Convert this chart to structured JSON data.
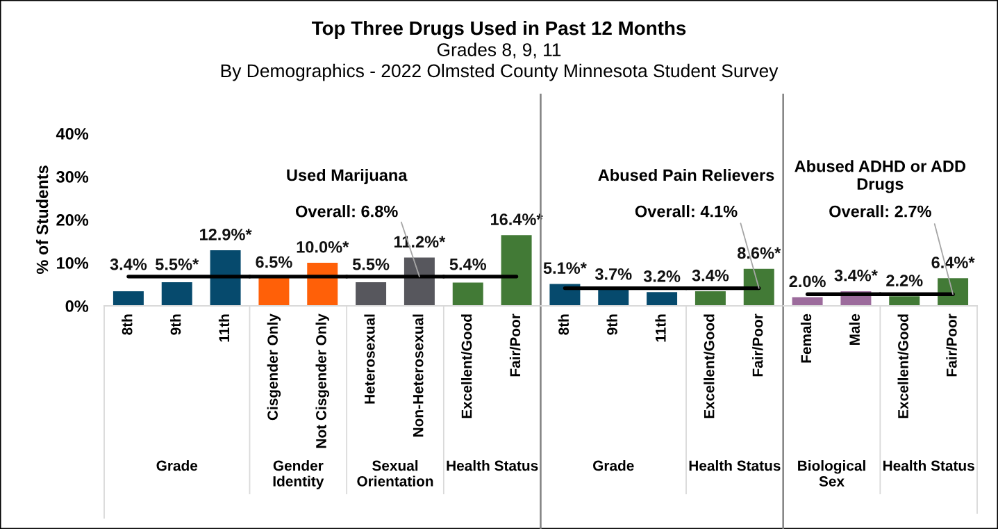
{
  "chart_data": [
    {
      "type": "bar",
      "ylabel": "% of Students",
      "xlabel": "Grade",
      "categories": [
        "8th",
        "9th",
        "11th"
      ],
      "values": [
        3.4,
        5.5,
        12.9
      ],
      "value_labels": [
        "3.4%",
        "5.5%*",
        "12.9%*"
      ],
      "color": "#064a6d",
      "ylim": [
        0,
        40
      ],
      "yticks": [
        {
          "value": 0,
          "label": "0%"
        },
        {
          "value": 10,
          "label": "10%"
        },
        {
          "value": 20,
          "label": "20%"
        },
        {
          "value": 30,
          "label": "30%"
        },
        {
          "value": 40,
          "label": "40%"
        }
      ],
      "ref_lines": [
        {
          "axis": "y",
          "value": 6.8,
          "color": "#000000"
        }
      ]
    },
    {
      "type": "bar",
      "xlabel": "Gender Identity",
      "categories": [
        "Cisgender Only",
        "Not Cisgender Only"
      ],
      "values": [
        6.5,
        10.0
      ],
      "value_labels": [
        "6.5%",
        "10.0%*"
      ],
      "color": "#ff6008",
      "ylim": [
        0,
        40
      ],
      "tick_labels": "x",
      "ref_lines": [
        {
          "axis": "y",
          "value": 6.8,
          "color": "#000000"
        }
      ]
    },
    {
      "type": "bar",
      "xlabel": "Sexual Orientation",
      "categories": [
        "Heterosexual",
        "Non-Heterosexual"
      ],
      "values": [
        5.5,
        11.2
      ],
      "value_labels": [
        "5.5%",
        "11.2%*"
      ],
      "color": "#57575d",
      "ylim": [
        0,
        40
      ],
      "tick_labels": "x",
      "ref_lines": [
        {
          "axis": "y",
          "value": 6.8,
          "color": "#000000",
          "label": "Overall: 6.8%"
        }
      ],
      "annotations": [
        "Used Marijuana"
      ]
    },
    {
      "type": "bar",
      "title": "Top Three Drugs Used in Past 12 Months",
      "subtitle": "Grades 8, 9, 11\nBy Demographics - 2022 Olmsted County Minnesota Student Survey",
      "xlabel": "Health Status",
      "categories": [
        "Excellent/Good",
        "Fair/Poor"
      ],
      "values": [
        5.4,
        16.4
      ],
      "value_labels": [
        "5.4%",
        "16.4%*"
      ],
      "color": "#427a36",
      "ylim": [
        0,
        40
      ],
      "tick_labels": "x",
      "ref_lines": [
        {
          "axis": "y",
          "value": 6.8,
          "color": "#000000"
        }
      ]
    },
    {
      "type": "bar",
      "xlabel": "Grade",
      "categories": [
        "8th",
        "9th",
        "11th"
      ],
      "values": [
        5.1,
        3.7,
        3.2
      ],
      "value_labels": [
        "5.1%*",
        "3.7%",
        "3.2%"
      ],
      "color": "#064a6d",
      "ylim": [
        0,
        40
      ],
      "tick_labels": "x",
      "ref_lines": [
        {
          "axis": "y",
          "value": 4.1,
          "color": "#000000"
        }
      ]
    },
    {
      "type": "bar",
      "xlabel": "Health Status",
      "categories": [
        "Excellent/Good",
        "Fair/Poor"
      ],
      "values": [
        3.4,
        8.6
      ],
      "value_labels": [
        "3.4%",
        "8.6%*"
      ],
      "color": "#427a36",
      "ylim": [
        0,
        40
      ],
      "tick_labels": "x",
      "ref_lines": [
        {
          "axis": "y",
          "value": 4.1,
          "color": "#000000",
          "label": "Overall: 4.1%"
        }
      ],
      "annotations": [
        "Abused Pain Relievers"
      ]
    },
    {
      "type": "bar",
      "xlabel": "Biological Sex",
      "categories": [
        "Female",
        "Male"
      ],
      "values": [
        2.0,
        3.4
      ],
      "value_labels": [
        "2.0%",
        "3.4%*"
      ],
      "color": "#9c6b9c",
      "ylim": [
        0,
        40
      ],
      "tick_labels": "x",
      "ref_lines": [
        {
          "axis": "y",
          "value": 2.7,
          "color": "#000000"
        }
      ]
    },
    {
      "type": "bar",
      "xlabel": "Health Status",
      "categories": [
        "Excellent/Good",
        "Fair/Poor"
      ],
      "values": [
        2.2,
        6.4
      ],
      "value_labels": [
        "2.2%",
        "6.4%*"
      ],
      "color": "#427a36",
      "ylim": [
        0,
        40
      ],
      "tick_labels": "x",
      "ref_lines": [
        {
          "axis": "y",
          "value": 2.7,
          "color": "#000000",
          "label": "Overall: 2.7%"
        }
      ],
      "annotations": [
        "Abused ADHD or ADD Drugs"
      ]
    }
  ]
}
